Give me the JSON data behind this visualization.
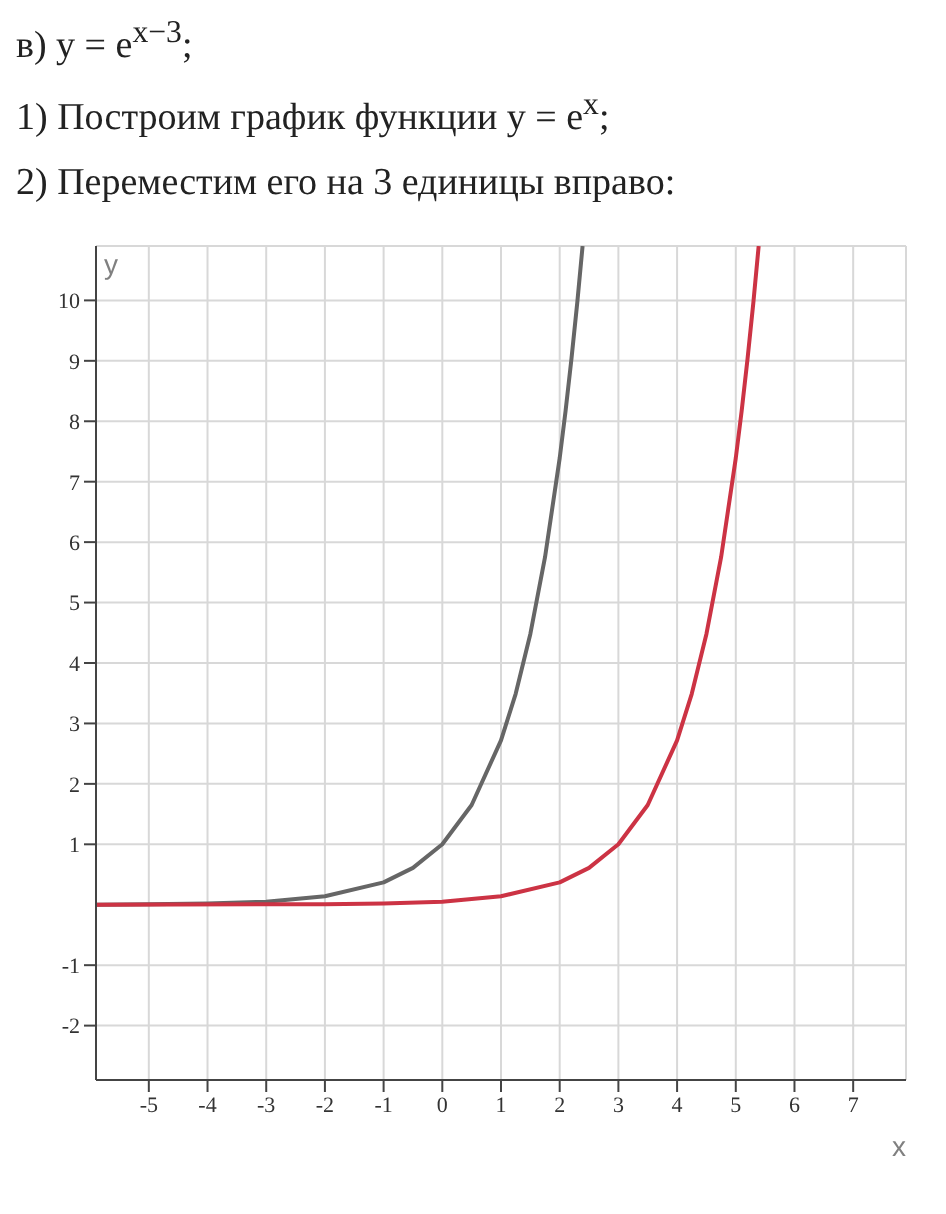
{
  "chart_data": {
    "type": "line",
    "title": "в) y = e$^{x−3}$;",
    "annotations": [
      "1) Построим график функции y = e$^{x}$;",
      "2) Переместим его на 3 единицы вправо:"
    ],
    "xlabel": "x",
    "ylabel": "y",
    "xlim": [
      -5.9,
      7.9
    ],
    "ylim": [
      -2.9,
      10.9
    ],
    "xticks": [
      -5,
      -4,
      -3,
      -2,
      -1,
      0,
      1,
      2,
      3,
      4,
      5,
      6,
      7
    ],
    "yticks": [
      -2,
      -1,
      1,
      2,
      3,
      4,
      5,
      6,
      7,
      8,
      9,
      10
    ],
    "grid": true,
    "marker": "none",
    "line_style": "solid",
    "series": [
      {
        "color": "#666666",
        "x": [
          -5.9,
          -5,
          -4,
          -3,
          -2,
          -1,
          -0.5,
          0,
          0.5,
          1,
          1.25,
          1.5,
          1.75,
          2,
          2.1,
          2.2,
          2.3,
          2.39
        ],
        "values": [
          0,
          0.01,
          0.02,
          0.05,
          0.14,
          0.37,
          0.61,
          1,
          1.65,
          2.72,
          3.49,
          4.48,
          5.75,
          7.39,
          8.17,
          9.03,
          9.97,
          10.9
        ]
      },
      {
        "color": "#cc3344",
        "x": [
          -5.9,
          -2,
          -1,
          0,
          1,
          2,
          2.5,
          3,
          3.5,
          4,
          4.25,
          4.5,
          4.75,
          5,
          5.1,
          5.2,
          5.3,
          5.39
        ],
        "values": [
          0,
          0.01,
          0.02,
          0.05,
          0.14,
          0.37,
          0.61,
          1,
          1.65,
          2.72,
          3.49,
          4.48,
          5.75,
          7.39,
          8.17,
          9.03,
          9.97,
          10.9
        ]
      }
    ]
  }
}
